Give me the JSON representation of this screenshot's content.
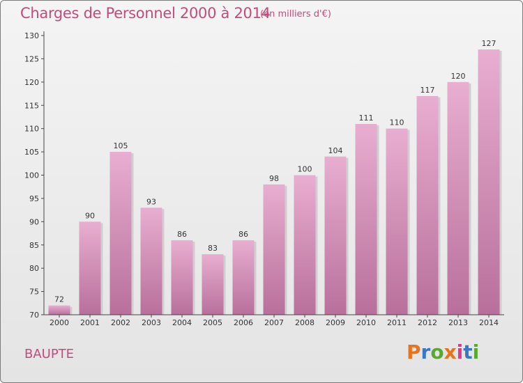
{
  "header": {
    "title": "Charges de Personnel 2000 à 2014",
    "unit": "(en milliers d'€)"
  },
  "commune": "BAUPTE",
  "logo": {
    "text": "Proxiti",
    "letters": [
      "P",
      "r",
      "o",
      "x",
      "i",
      "t",
      "i"
    ],
    "colors": [
      "#e8731a",
      "#3a78c3",
      "#5aa832",
      "#e8731a",
      "#d93a8a",
      "#3a78c3",
      "#5aa832"
    ]
  },
  "colors": {
    "bar_top": "#e8aed0",
    "bar_bottom": "#b8709b",
    "accent": "#c24b7e"
  },
  "chart_data": {
    "type": "bar",
    "title": "Charges de Personnel 2000 à 2014",
    "subtitle": "(en milliers d'€)",
    "xlabel": "",
    "ylabel": "",
    "categories": [
      "2000",
      "2001",
      "2002",
      "2003",
      "2004",
      "2005",
      "2006",
      "2007",
      "2008",
      "2009",
      "2010",
      "2011",
      "2012",
      "2013",
      "2014"
    ],
    "values": [
      72,
      90,
      105,
      93,
      86,
      83,
      86,
      98,
      100,
      104,
      111,
      110,
      117,
      120,
      127
    ],
    "ylim": [
      70,
      130
    ],
    "yticks": [
      70,
      75,
      80,
      85,
      90,
      95,
      100,
      105,
      110,
      115,
      120,
      125,
      130
    ],
    "grid": false,
    "legend": "none"
  }
}
